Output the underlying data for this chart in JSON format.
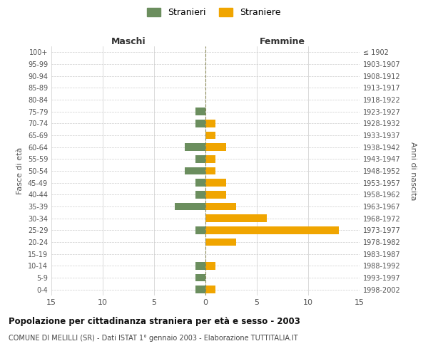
{
  "age_groups": [
    "100+",
    "95-99",
    "90-94",
    "85-89",
    "80-84",
    "75-79",
    "70-74",
    "65-69",
    "60-64",
    "55-59",
    "50-54",
    "45-49",
    "40-44",
    "35-39",
    "30-34",
    "25-29",
    "20-24",
    "15-19",
    "10-14",
    "5-9",
    "0-4"
  ],
  "birth_years": [
    "≤ 1902",
    "1903-1907",
    "1908-1912",
    "1913-1917",
    "1918-1922",
    "1923-1927",
    "1928-1932",
    "1933-1937",
    "1938-1942",
    "1943-1947",
    "1948-1952",
    "1953-1957",
    "1958-1962",
    "1963-1967",
    "1968-1972",
    "1973-1977",
    "1978-1982",
    "1983-1987",
    "1988-1992",
    "1993-1997",
    "1998-2002"
  ],
  "maschi": [
    0,
    0,
    0,
    0,
    0,
    1,
    1,
    0,
    2,
    1,
    2,
    1,
    1,
    3,
    0,
    1,
    0,
    0,
    1,
    1,
    1
  ],
  "femmine": [
    0,
    0,
    0,
    0,
    0,
    0,
    1,
    1,
    2,
    1,
    1,
    2,
    2,
    3,
    6,
    13,
    3,
    0,
    1,
    0,
    1
  ],
  "color_maschi": "#6b8e5e",
  "color_femmine": "#f0a500",
  "xlim": 15,
  "title": "Popolazione per cittadinanza straniera per età e sesso - 2003",
  "subtitle": "COMUNE DI MELILLI (SR) - Dati ISTAT 1° gennaio 2003 - Elaborazione TUTTITALIA.IT",
  "xlabel_left": "Maschi",
  "xlabel_right": "Femmine",
  "ylabel_left": "Fasce di età",
  "ylabel_right": "Anni di nascita",
  "legend_maschi": "Stranieri",
  "legend_femmine": "Straniere",
  "background_color": "#ffffff",
  "grid_color": "#cccccc"
}
